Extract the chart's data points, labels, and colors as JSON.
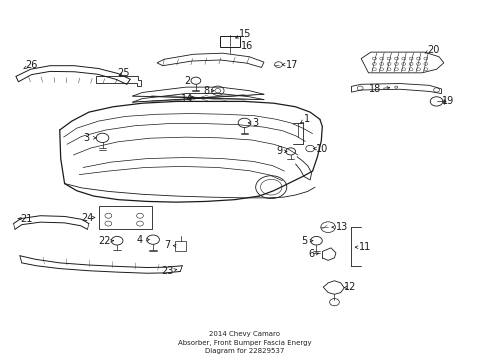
{
  "bg_color": "#ffffff",
  "line_color": "#1a1a1a",
  "fig_width": 4.89,
  "fig_height": 3.6,
  "dpi": 100,
  "font_size": 7.0,
  "title": "2014 Chevy Camaro\nAbsorber, Front Bumper Fascia Energy\nDiagram for 22829537"
}
